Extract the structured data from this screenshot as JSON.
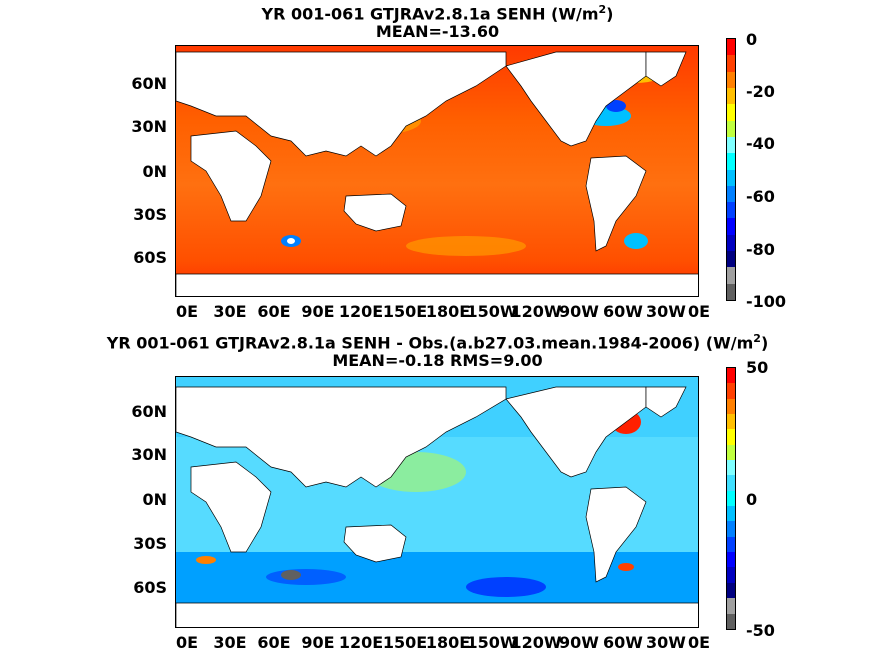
{
  "panels": [
    {
      "title_line1": "YR 001-061 GTJRAv2.8.1a  SENH (W/m",
      "title_sup": "2",
      "title_close": ")",
      "title_line2": "MEAN=-13.60",
      "y_labels": [
        "60N",
        "30N",
        "0N",
        "30S",
        "60S"
      ],
      "x_labels": [
        "0E",
        "30E",
        "60E",
        "90E",
        "120E",
        "150E",
        "180E",
        "150W",
        "120W",
        "90W",
        "60W",
        "30W",
        "0E"
      ],
      "colorbar_labels": [
        "0",
        "-20",
        "-40",
        "-60",
        "-80",
        "-100"
      ],
      "colorbar_colors": [
        "#ff0000",
        "#ff4000",
        "#ff8000",
        "#ffbf00",
        "#ffff00",
        "#c0ff40",
        "#80ffff",
        "#00ffff",
        "#00c0ff",
        "#0080ff",
        "#0040ff",
        "#0000ff",
        "#0000c0",
        "#000080",
        "#a0a0a0",
        "#606060"
      ]
    },
    {
      "title_line1": "YR 001-061 GTJRAv2.8.1a SENH - Obs.(a.b27.03.mean.1984-2006) (W/m",
      "title_sup": "2",
      "title_close": ")",
      "title_line2": "MEAN=-0.18 RMS=9.00",
      "y_labels": [
        "60N",
        "30N",
        "0N",
        "30S",
        "60S"
      ],
      "x_labels": [
        "0E",
        "30E",
        "60E",
        "90E",
        "120E",
        "150E",
        "180E",
        "150W",
        "120W",
        "90W",
        "60W",
        "30W",
        "0E"
      ],
      "colorbar_labels": [
        "50",
        "0",
        "-50"
      ],
      "colorbar_colors": [
        "#ff0000",
        "#ff4000",
        "#ff8000",
        "#ffbf00",
        "#ffff00",
        "#c0ff40",
        "#80ffff",
        "#40e0ff",
        "#00ffff",
        "#00c0ff",
        "#0080ff",
        "#0040ff",
        "#0000ff",
        "#0000c0",
        "#000080",
        "#a0a0a0",
        "#606060"
      ]
    }
  ]
}
